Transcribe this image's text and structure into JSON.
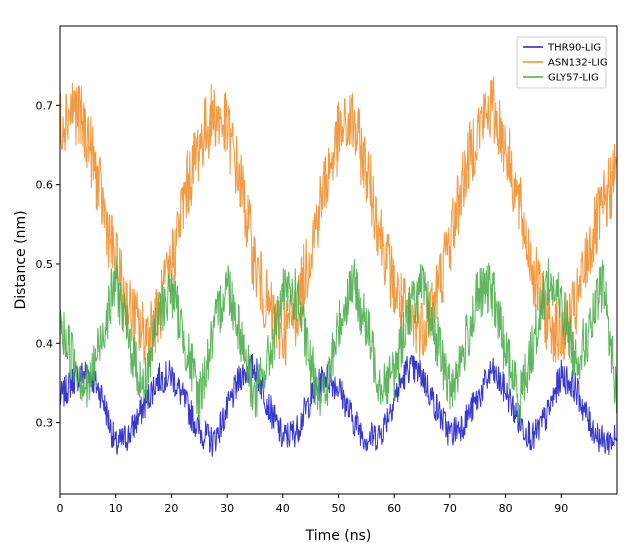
{
  "chart_data": {
    "type": "line",
    "title": "",
    "xlabel": "Time (ns)",
    "ylabel": "Distance (nm)",
    "xlim": [
      0,
      100
    ],
    "ylim": [
      0.21,
      0.8
    ],
    "xticks": [
      0,
      10,
      20,
      30,
      40,
      50,
      60,
      70,
      80,
      90
    ],
    "yticks": [
      0.3,
      0.4,
      0.5,
      0.6,
      0.7
    ],
    "grid": false,
    "legend_position": "top-right",
    "series": [
      {
        "name": "THR90-LIG",
        "color": "#2222cc",
        "x": [
          0,
          2.5,
          5,
          7.5,
          10,
          12.5,
          15,
          17.5,
          20,
          22.5,
          25,
          27.5,
          30,
          32.5,
          35,
          37.5,
          40,
          42.5,
          45,
          47.5,
          50,
          52.5,
          55,
          57.5,
          60,
          62.5,
          65,
          67.5,
          70,
          72.5,
          75,
          77.5,
          80,
          82.5,
          85,
          87.5,
          90,
          92.5,
          95,
          97.5,
          100
        ],
        "y": [
          0.33,
          0.355,
          0.365,
          0.335,
          0.27,
          0.285,
          0.32,
          0.355,
          0.36,
          0.325,
          0.29,
          0.275,
          0.315,
          0.36,
          0.37,
          0.32,
          0.28,
          0.29,
          0.33,
          0.36,
          0.345,
          0.305,
          0.28,
          0.285,
          0.33,
          0.37,
          0.36,
          0.32,
          0.285,
          0.3,
          0.33,
          0.365,
          0.34,
          0.3,
          0.28,
          0.31,
          0.36,
          0.345,
          0.3,
          0.275,
          0.28
        ]
      },
      {
        "name": "ASN132-LIG",
        "color": "#f28e2b",
        "x": [
          0,
          2.5,
          5,
          7.5,
          10,
          12.5,
          15,
          17.5,
          20,
          22.5,
          25,
          27.5,
          30,
          32.5,
          35,
          37.5,
          40,
          42.5,
          45,
          47.5,
          50,
          52.5,
          55,
          57.5,
          60,
          62.5,
          65,
          67.5,
          70,
          72.5,
          75,
          77.5,
          80,
          82.5,
          85,
          87.5,
          90,
          92.5,
          95,
          97.5,
          100
        ],
        "y": [
          0.68,
          0.7,
          0.66,
          0.58,
          0.5,
          0.44,
          0.41,
          0.43,
          0.5,
          0.59,
          0.65,
          0.69,
          0.67,
          0.6,
          0.5,
          0.44,
          0.41,
          0.44,
          0.52,
          0.6,
          0.66,
          0.68,
          0.62,
          0.54,
          0.47,
          0.43,
          0.42,
          0.46,
          0.53,
          0.61,
          0.67,
          0.7,
          0.65,
          0.57,
          0.49,
          0.43,
          0.41,
          0.44,
          0.52,
          0.57,
          0.62
        ]
      },
      {
        "name": "GLY57-LIG",
        "color": "#4cae4c",
        "x": [
          0,
          2.5,
          5,
          7.5,
          10,
          12.5,
          15,
          17.5,
          20,
          22.5,
          25,
          27.5,
          30,
          32.5,
          35,
          37.5,
          40,
          42.5,
          45,
          47.5,
          50,
          52.5,
          55,
          57.5,
          60,
          62.5,
          65,
          67.5,
          70,
          72.5,
          75,
          77.5,
          80,
          82.5,
          85,
          87.5,
          90,
          92.5,
          95,
          97.5,
          100
        ],
        "y": [
          0.42,
          0.38,
          0.34,
          0.41,
          0.48,
          0.4,
          0.34,
          0.43,
          0.47,
          0.4,
          0.33,
          0.41,
          0.48,
          0.41,
          0.33,
          0.38,
          0.46,
          0.46,
          0.37,
          0.33,
          0.42,
          0.48,
          0.42,
          0.35,
          0.36,
          0.44,
          0.47,
          0.41,
          0.34,
          0.39,
          0.46,
          0.47,
          0.39,
          0.33,
          0.4,
          0.48,
          0.45,
          0.38,
          0.41,
          0.48,
          0.33
        ]
      }
    ]
  }
}
